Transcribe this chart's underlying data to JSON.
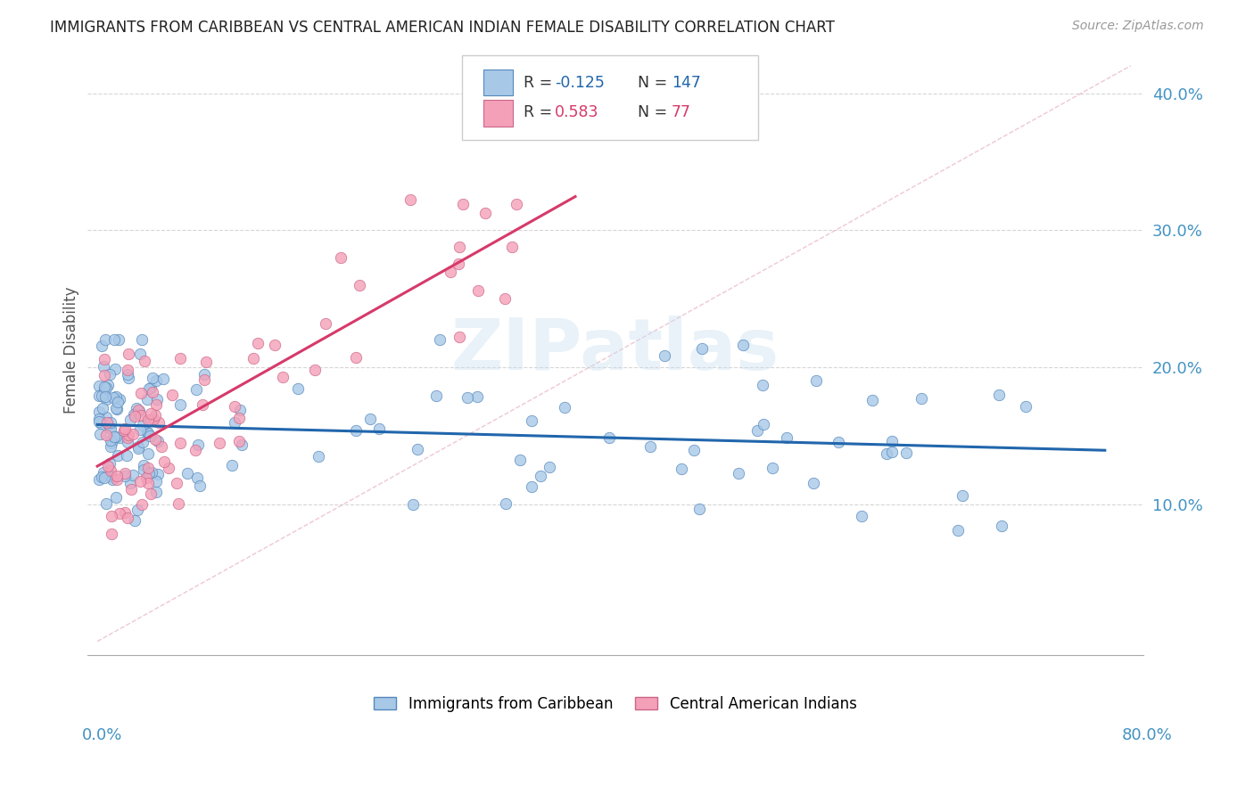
{
  "title": "IMMIGRANTS FROM CARIBBEAN VS CENTRAL AMERICAN INDIAN FEMALE DISABILITY CORRELATION CHART",
  "source": "Source: ZipAtlas.com",
  "ylabel": "Female Disability",
  "xlim": [
    0.0,
    0.8
  ],
  "ylim": [
    0.0,
    0.42
  ],
  "watermark": "ZIPatlas",
  "color_blue": "#a8c8e8",
  "color_pink": "#f4a0b8",
  "color_blue_edge": "#5588bb",
  "color_pink_edge": "#cc6688",
  "color_blue_line": "#2166ac",
  "color_pink_line": "#d63a6a",
  "color_diag": "#e8b8c8",
  "color_grid": "#cccccc",
  "color_title": "#222222",
  "color_source": "#999999",
  "color_yaxis": "#4393c3",
  "color_xaxis": "#4393c3"
}
